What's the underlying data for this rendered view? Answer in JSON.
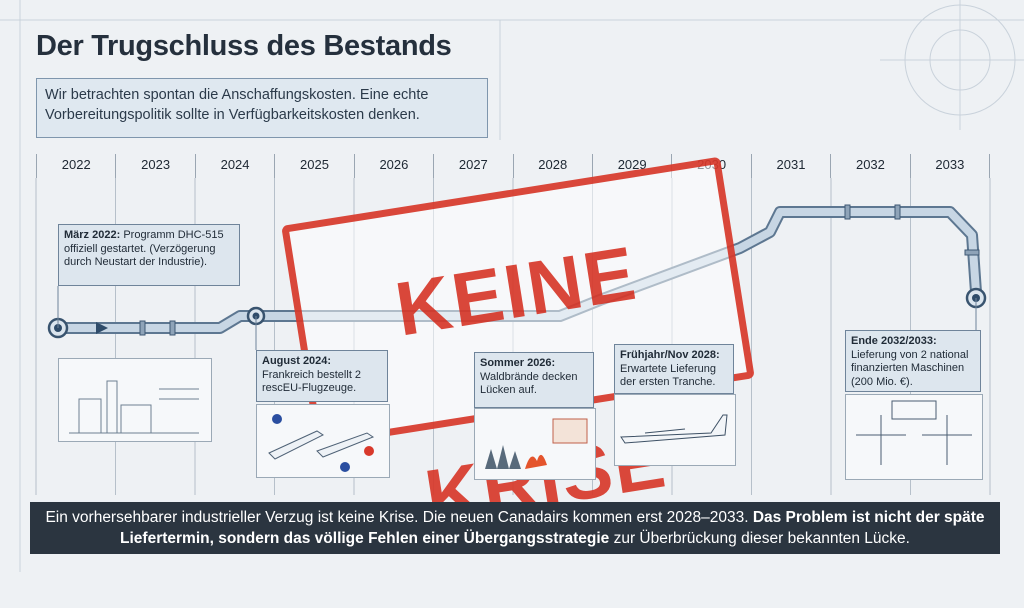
{
  "title": "Der Trugschluss des Bestands",
  "subtitle": "Wir betrachten spontan die Anschaffungskosten. Eine echte Vorbereitungspolitik sollte in Verfügbarkeitskosten denken.",
  "years": [
    "2022",
    "2023",
    "2024",
    "2025",
    "2026",
    "2027",
    "2028",
    "2029",
    "2030",
    "2031",
    "2032",
    "2033"
  ],
  "stamp": "KEINE KRISE",
  "events": [
    {
      "date": "März 2022:",
      "text": "Programm DHC-515 offiziell gestartet. (Verzögerung durch Neustart der Industrie)."
    },
    {
      "date": "August 2024:",
      "text": "Frankreich bestellt 2 rescEU-Flugzeuge."
    },
    {
      "date": "Sommer 2026:",
      "text": "Waldbrände decken Lücken auf."
    },
    {
      "date": "Frühjahr/Nov 2028:",
      "text": "Erwartete Lieferung der ersten Tranche."
    },
    {
      "date": "Ende 2032/2033:",
      "text": "Lieferung von 2 national finanzierten Maschinen (200 Mio. €)."
    }
  ],
  "footer": {
    "part1": "Ein vorhersehbarer industrieller Verzug ist keine Krise. Die neuen Canadairs kommen erst 2028–2033. ",
    "bold": "Das Problem ist nicht der späte Liefertermin, sondern das völlige Fehlen einer Übergangsstrategie",
    "part2": " zur Überbrückung dieser bekannten Lücke."
  },
  "colors": {
    "stamp": "#d8392b",
    "pipe": "#8fa8c2",
    "card": "#dde6ee",
    "footer": "#2b3540"
  }
}
